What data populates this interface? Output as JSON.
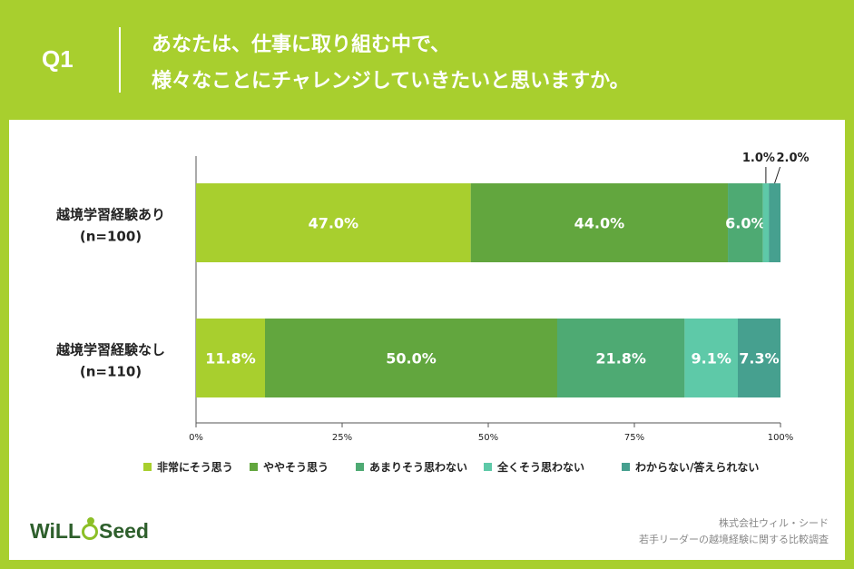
{
  "header": {
    "question_number": "Q1",
    "question_line1": "あなたは、仕事に取り組む中で、",
    "question_line2": "様々なことにチャレンジしていきたいと思いますか。"
  },
  "colors": {
    "background": "#a8cf2e",
    "text": "#222222",
    "axis": "#555555"
  },
  "chart_data": {
    "type": "bar",
    "orientation": "horizontal",
    "stacked": true,
    "xlim": [
      0,
      100
    ],
    "xticks": [
      "0%",
      "25%",
      "50%",
      "75%",
      "100%"
    ],
    "grid": false,
    "legend_position": "bottom",
    "categories": [
      {
        "label": "越境学習経験あり",
        "n": "(n=100)"
      },
      {
        "label": "越境学習経験なし",
        "n": "(n=110)"
      }
    ],
    "series": [
      {
        "name": "非常にそう思う",
        "color": "#a8cf2e",
        "values": [
          47.0,
          11.8
        ],
        "labels": [
          "47.0%",
          "11.8%"
        ]
      },
      {
        "name": "ややそう思う",
        "color": "#62a63e",
        "values": [
          44.0,
          50.0
        ],
        "labels": [
          "44.0%",
          "50.0%"
        ]
      },
      {
        "name": "あまりそう思わない",
        "color": "#4eaa73",
        "values": [
          6.0,
          21.8
        ],
        "labels": [
          "6.0%",
          "21.8%"
        ]
      },
      {
        "name": "全くそう思わない",
        "color": "#5ec9a8",
        "values": [
          1.0,
          9.1
        ],
        "labels": [
          "1.0%",
          "9.1%"
        ]
      },
      {
        "name": "わからない/答えられない",
        "color": "#46a08f",
        "values": [
          2.0,
          7.3
        ],
        "labels": [
          "2.0%",
          "7.3%"
        ]
      }
    ]
  },
  "footer": {
    "logo_text_left": "WiLL",
    "logo_text_right": "Seed",
    "company": "株式会社ウィル・シード",
    "survey_title": "若手リーダーの越境経験に関する比較調査"
  }
}
